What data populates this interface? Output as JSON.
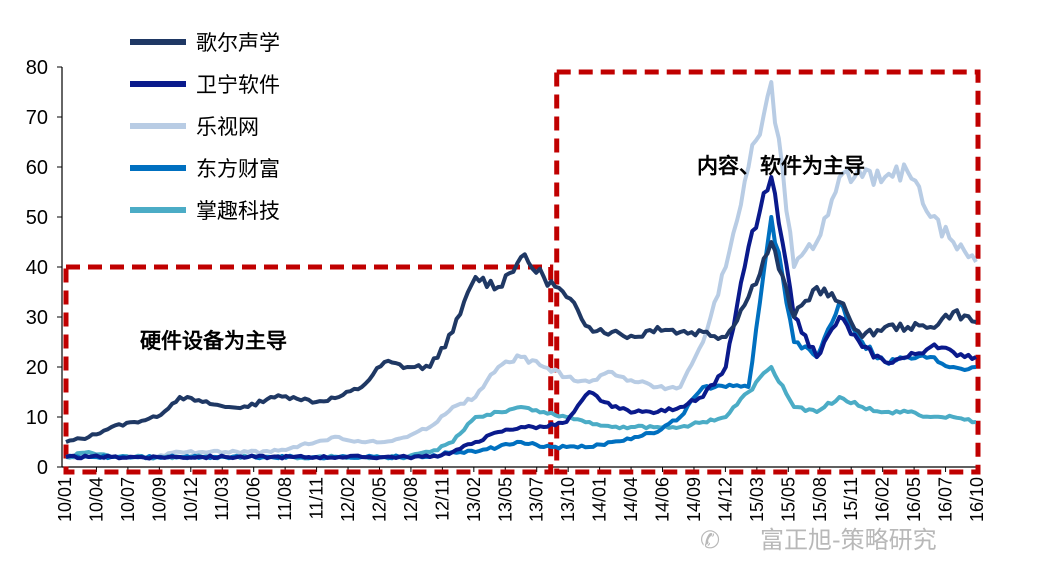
{
  "chart_data": {
    "type": "line",
    "title": "",
    "xlabel": "",
    "ylabel": "",
    "ylim": [
      0,
      80
    ],
    "yticks": [
      0,
      10,
      20,
      30,
      40,
      50,
      60,
      70,
      80
    ],
    "grid": false,
    "legend_position": "top-left",
    "x_tick_labels": [
      "10/01",
      "10/04",
      "10/07",
      "10/09",
      "10/12",
      "11/03",
      "11/06",
      "11/08",
      "11/11",
      "12/02",
      "12/05",
      "12/08",
      "12/11",
      "13/02",
      "13/05",
      "13/07",
      "13/10",
      "14/01",
      "14/04",
      "14/06",
      "14/09",
      "14/12",
      "15/03",
      "15/05",
      "15/08",
      "15/11",
      "16/02",
      "16/05",
      "16/07",
      "16/10"
    ],
    "series": [
      {
        "name": "歌尔声学",
        "color": "#1f3864",
        "values": [
          5,
          6,
          8,
          9,
          10,
          14,
          13,
          12,
          12,
          14,
          14,
          13,
          14,
          16,
          21,
          20,
          20,
          27,
          38,
          36,
          42,
          38,
          34,
          28,
          27,
          26,
          28,
          27,
          27,
          26,
          34,
          45,
          30,
          36,
          33,
          26,
          28,
          28,
          28,
          31,
          29
        ]
      },
      {
        "name": "卫宁软件",
        "color": "#0a1a8c",
        "values": [
          2,
          2,
          2,
          2,
          2,
          2,
          2,
          2,
          2,
          2,
          2,
          2,
          2,
          2,
          2,
          2,
          2,
          3,
          5,
          7,
          8,
          8,
          9,
          15,
          12,
          11,
          11,
          12,
          14,
          20,
          44,
          58,
          30,
          22,
          30,
          24,
          21,
          22,
          24,
          23,
          22
        ]
      },
      {
        "name": "乐视网",
        "color": "#b8cce4",
        "values": [
          2,
          2,
          2,
          2,
          2,
          3,
          3,
          3,
          3,
          3,
          4,
          5,
          6,
          5,
          5,
          6,
          8,
          12,
          14,
          20,
          22,
          20,
          18,
          17,
          19,
          17,
          16,
          16,
          25,
          40,
          60,
          77,
          40,
          45,
          58,
          58,
          58,
          59,
          50,
          45,
          41
        ]
      },
      {
        "name": "东方财富",
        "color": "#0070c0",
        "values": [
          2,
          2,
          2,
          2,
          2,
          2,
          2,
          2,
          2,
          2,
          2,
          2,
          2,
          2,
          2,
          2,
          2,
          3,
          3,
          4,
          5,
          4,
          4,
          4,
          5,
          6,
          7,
          10,
          16,
          16,
          16,
          50,
          25,
          22,
          33,
          25,
          21,
          22,
          22,
          20,
          20
        ]
      },
      {
        "name": "掌趣科技",
        "color": "#4bacc6",
        "values": [
          2,
          3,
          2,
          2,
          2,
          2,
          2,
          2,
          2,
          2,
          2,
          2,
          2,
          2,
          2,
          2,
          3,
          5,
          10,
          11,
          12,
          11,
          10,
          9,
          8,
          8,
          8,
          8,
          9,
          10,
          15,
          20,
          12,
          11,
          14,
          12,
          11,
          11,
          10,
          10,
          9
        ]
      }
    ],
    "annotations": [
      {
        "text": "硬件设备为主导"
      },
      {
        "text": "内容、软件为主导"
      }
    ]
  },
  "watermark": "富正旭-策略研究"
}
